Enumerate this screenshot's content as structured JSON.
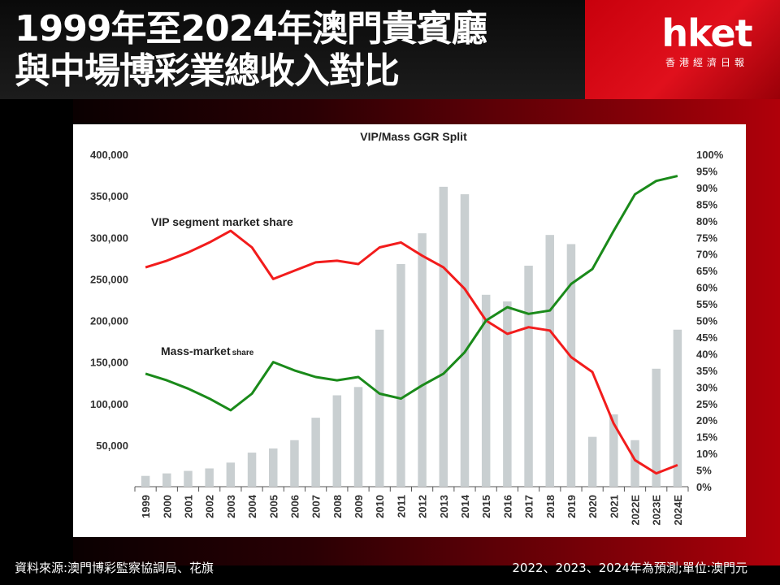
{
  "header": {
    "title_line1": "1999年至2024年澳門貴賓廳",
    "title_line2": "與中場博彩業總收入對比"
  },
  "logo": {
    "main": "hket",
    "sub": "香港經濟日報"
  },
  "footer": {
    "source": "資料來源:澳門博彩監察協調局、花旗",
    "note": "2022、2023、2024年為預測;單位:澳門元"
  },
  "colors": {
    "vip": "#f21c1c",
    "mass": "#1a8a1a",
    "bar": "#c9cfd1",
    "accent": "#c8000c"
  },
  "chart_data": {
    "type": "bar",
    "title": "VIP/Mass GGR Split",
    "categories": [
      "1999",
      "2000",
      "2001",
      "2002",
      "2003",
      "2004",
      "2005",
      "2006",
      "2007",
      "2008",
      "2009",
      "2010",
      "2011",
      "2012",
      "2013",
      "2014",
      "2015",
      "2016",
      "2017",
      "2018",
      "2019",
      "2020",
      "2021",
      "2022E",
      "2023E",
      "2024E"
    ],
    "bar_values": [
      13000,
      16000,
      19000,
      22000,
      29000,
      41000,
      46000,
      56000,
      83000,
      110000,
      120000,
      189000,
      268000,
      305000,
      361000,
      352000,
      231000,
      223000,
      266000,
      303000,
      292000,
      60000,
      87000,
      56000,
      142000,
      189000
    ],
    "y_left": {
      "ylim": [
        0,
        400000
      ],
      "ticks": [
        "400,000",
        "350,000",
        "300,000",
        "250,000",
        "200,000",
        "150,000",
        "100,000",
        "50,000"
      ],
      "tick_values": [
        400000,
        350000,
        300000,
        250000,
        200000,
        150000,
        100000,
        50000
      ]
    },
    "y_right": {
      "ylim": [
        0,
        100
      ],
      "ticks": [
        "100%",
        "95%",
        "90%",
        "85%",
        "80%",
        "75%",
        "70%",
        "65%",
        "60%",
        "55%",
        "50%",
        "45%",
        "40%",
        "35%",
        "30%",
        "25%",
        "20%",
        "15%",
        "10%",
        "5%",
        "0%"
      ],
      "tick_values": [
        100,
        95,
        90,
        85,
        80,
        75,
        70,
        65,
        60,
        55,
        50,
        45,
        40,
        35,
        30,
        25,
        20,
        15,
        10,
        5,
        0
      ]
    },
    "series": [
      {
        "name": "VIP segment market share",
        "axis": "right",
        "values": [
          66,
          68,
          70.5,
          73.5,
          77,
          72,
          62.5,
          65,
          67.5,
          68,
          67,
          72,
          73.5,
          69.5,
          66,
          59.5,
          50,
          46,
          48,
          47,
          39,
          34.5,
          19,
          8,
          4,
          6.5
        ]
      },
      {
        "name": "Mass-market share",
        "axis": "right",
        "values": [
          34,
          32,
          29.5,
          26.5,
          23,
          28,
          37.5,
          35,
          33,
          32,
          33,
          28,
          26.5,
          30.5,
          34,
          40.5,
          50,
          54,
          52,
          53,
          61,
          65.5,
          77,
          88,
          92,
          93.5
        ]
      }
    ],
    "annotations": {
      "vip_label_main": "VIP segment market share",
      "mass_label_main": "Mass-market",
      "mass_label_small": "share"
    }
  }
}
